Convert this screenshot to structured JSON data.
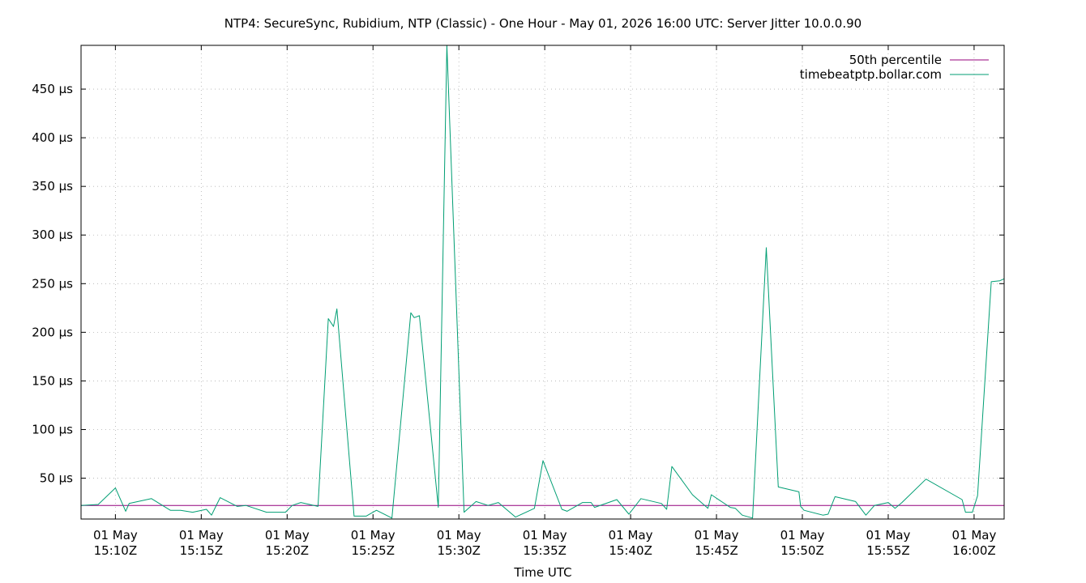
{
  "chart_data": {
    "type": "line",
    "title": "NTP4: SecureSync, Rubidium, NTP (Classic) - One Hour - May 01, 2026 16:00 UTC: Server Jitter 10.0.0.90",
    "xlabel": "Time UTC",
    "ylabel": "",
    "ylim": [
      8,
      495
    ],
    "x_range": [
      "2026-05-01T15:08:00Z",
      "2026-05-01T16:01:45Z"
    ],
    "grid": true,
    "legend_position": "top-right",
    "y_ticks": [
      {
        "value": 50,
        "label": "50 µs"
      },
      {
        "value": 100,
        "label": "100 µs"
      },
      {
        "value": 150,
        "label": "150 µs"
      },
      {
        "value": 200,
        "label": "200 µs"
      },
      {
        "value": 250,
        "label": "250 µs"
      },
      {
        "value": 300,
        "label": "300 µs"
      },
      {
        "value": 350,
        "label": "350 µs"
      },
      {
        "value": 400,
        "label": "400 µs"
      },
      {
        "value": 450,
        "label": "450 µs"
      }
    ],
    "x_ticks": [
      {
        "value": "2026-05-01T15:10:00Z",
        "line1": "01 May",
        "line2": "15:10Z"
      },
      {
        "value": "2026-05-01T15:15:00Z",
        "line1": "01 May",
        "line2": "15:15Z"
      },
      {
        "value": "2026-05-01T15:20:00Z",
        "line1": "01 May",
        "line2": "15:20Z"
      },
      {
        "value": "2026-05-01T15:25:00Z",
        "line1": "01 May",
        "line2": "15:25Z"
      },
      {
        "value": "2026-05-01T15:30:00Z",
        "line1": "01 May",
        "line2": "15:30Z"
      },
      {
        "value": "2026-05-01T15:35:00Z",
        "line1": "01 May",
        "line2": "15:35Z"
      },
      {
        "value": "2026-05-01T15:40:00Z",
        "line1": "01 May",
        "line2": "15:40Z"
      },
      {
        "value": "2026-05-01T15:45:00Z",
        "line1": "01 May",
        "line2": "15:45Z"
      },
      {
        "value": "2026-05-01T15:50:00Z",
        "line1": "01 May",
        "line2": "15:50Z"
      },
      {
        "value": "2026-05-01T15:55:00Z",
        "line1": "01 May",
        "line2": "15:55Z"
      },
      {
        "value": "2026-05-01T16:00:00Z",
        "line1": "01 May",
        "line2": "16:00Z"
      }
    ],
    "series": [
      {
        "name": "50th percentile",
        "color": "#94007e",
        "points": [
          {
            "x": "2026-05-01T15:08:00Z",
            "y": 22
          },
          {
            "x": "2026-05-01T16:01:45Z",
            "y": 22
          }
        ]
      },
      {
        "name": "timebeatptp.bollar.com",
        "color": "#009e73",
        "points": [
          {
            "x": "2026-05-01T15:08:00Z",
            "y": 22
          },
          {
            "x": "2026-05-01T15:09:00Z",
            "y": 23
          },
          {
            "x": "2026-05-01T15:10:00Z",
            "y": 40
          },
          {
            "x": "2026-05-01T15:10:36Z",
            "y": 16
          },
          {
            "x": "2026-05-01T15:10:48Z",
            "y": 24
          },
          {
            "x": "2026-05-01T15:12:06Z",
            "y": 29
          },
          {
            "x": "2026-05-01T15:13:12Z",
            "y": 17
          },
          {
            "x": "2026-05-01T15:13:48Z",
            "y": 17
          },
          {
            "x": "2026-05-01T15:14:30Z",
            "y": 15
          },
          {
            "x": "2026-05-01T15:15:18Z",
            "y": 18
          },
          {
            "x": "2026-05-01T15:15:36Z",
            "y": 12
          },
          {
            "x": "2026-05-01T15:16:06Z",
            "y": 30
          },
          {
            "x": "2026-05-01T15:17:06Z",
            "y": 21
          },
          {
            "x": "2026-05-01T15:17:36Z",
            "y": 22
          },
          {
            "x": "2026-05-01T15:18:48Z",
            "y": 15
          },
          {
            "x": "2026-05-01T15:19:54Z",
            "y": 15
          },
          {
            "x": "2026-05-01T15:20:18Z",
            "y": 22
          },
          {
            "x": "2026-05-01T15:20:48Z",
            "y": 25
          },
          {
            "x": "2026-05-01T15:21:48Z",
            "y": 21
          },
          {
            "x": "2026-05-01T15:22:24Z",
            "y": 214
          },
          {
            "x": "2026-05-01T15:22:42Z",
            "y": 206
          },
          {
            "x": "2026-05-01T15:22:54Z",
            "y": 224
          },
          {
            "x": "2026-05-01T15:23:54Z",
            "y": 11
          },
          {
            "x": "2026-05-01T15:24:36Z",
            "y": 11
          },
          {
            "x": "2026-05-01T15:25:12Z",
            "y": 17
          },
          {
            "x": "2026-05-01T15:26:06Z",
            "y": 9
          },
          {
            "x": "2026-05-01T15:27:12Z",
            "y": 220
          },
          {
            "x": "2026-05-01T15:27:24Z",
            "y": 215
          },
          {
            "x": "2026-05-01T15:27:42Z",
            "y": 217
          },
          {
            "x": "2026-05-01T15:28:48Z",
            "y": 20
          },
          {
            "x": "2026-05-01T15:29:18Z",
            "y": 495
          },
          {
            "x": "2026-05-01T15:30:18Z",
            "y": 15
          },
          {
            "x": "2026-05-01T15:31:00Z",
            "y": 26
          },
          {
            "x": "2026-05-01T15:31:42Z",
            "y": 22
          },
          {
            "x": "2026-05-01T15:32:18Z",
            "y": 25
          },
          {
            "x": "2026-05-01T15:33:18Z",
            "y": 10
          },
          {
            "x": "2026-05-01T15:34:24Z",
            "y": 19
          },
          {
            "x": "2026-05-01T15:34:54Z",
            "y": 68
          },
          {
            "x": "2026-05-01T15:36:00Z",
            "y": 18
          },
          {
            "x": "2026-05-01T15:36:18Z",
            "y": 16
          },
          {
            "x": "2026-05-01T15:37:12Z",
            "y": 25
          },
          {
            "x": "2026-05-01T15:37:42Z",
            "y": 25
          },
          {
            "x": "2026-05-01T15:37:54Z",
            "y": 20
          },
          {
            "x": "2026-05-01T15:39:12Z",
            "y": 28
          },
          {
            "x": "2026-05-01T15:39:54Z",
            "y": 13
          },
          {
            "x": "2026-05-01T15:40:36Z",
            "y": 29
          },
          {
            "x": "2026-05-01T15:41:48Z",
            "y": 24
          },
          {
            "x": "2026-05-01T15:42:06Z",
            "y": 18
          },
          {
            "x": "2026-05-01T15:42:24Z",
            "y": 62
          },
          {
            "x": "2026-05-01T15:43:36Z",
            "y": 33
          },
          {
            "x": "2026-05-01T15:44:30Z",
            "y": 19
          },
          {
            "x": "2026-05-01T15:44:42Z",
            "y": 33
          },
          {
            "x": "2026-05-01T15:45:48Z",
            "y": 20
          },
          {
            "x": "2026-05-01T15:46:06Z",
            "y": 19
          },
          {
            "x": "2026-05-01T15:46:30Z",
            "y": 12
          },
          {
            "x": "2026-05-01T15:47:06Z",
            "y": 9
          },
          {
            "x": "2026-05-01T15:47:54Z",
            "y": 287
          },
          {
            "x": "2026-05-01T15:48:36Z",
            "y": 41
          },
          {
            "x": "2026-05-01T15:49:48Z",
            "y": 36
          },
          {
            "x": "2026-05-01T15:49:54Z",
            "y": 21
          },
          {
            "x": "2026-05-01T15:50:06Z",
            "y": 17
          },
          {
            "x": "2026-05-01T15:51:12Z",
            "y": 12
          },
          {
            "x": "2026-05-01T15:51:30Z",
            "y": 13
          },
          {
            "x": "2026-05-01T15:51:54Z",
            "y": 31
          },
          {
            "x": "2026-05-01T15:53:06Z",
            "y": 26
          },
          {
            "x": "2026-05-01T15:53:42Z",
            "y": 12
          },
          {
            "x": "2026-05-01T15:54:12Z",
            "y": 22
          },
          {
            "x": "2026-05-01T15:55:00Z",
            "y": 25
          },
          {
            "x": "2026-05-01T15:55:24Z",
            "y": 19
          },
          {
            "x": "2026-05-01T15:55:48Z",
            "y": 25
          },
          {
            "x": "2026-05-01T15:57:12Z",
            "y": 49
          },
          {
            "x": "2026-05-01T15:59:18Z",
            "y": 28
          },
          {
            "x": "2026-05-01T15:59:30Z",
            "y": 15
          },
          {
            "x": "2026-05-01T15:59:54Z",
            "y": 15
          },
          {
            "x": "2026-05-01T16:00:12Z",
            "y": 32
          },
          {
            "x": "2026-05-01T16:01:00Z",
            "y": 252
          },
          {
            "x": "2026-05-01T16:01:30Z",
            "y": 253
          },
          {
            "x": "2026-05-01T16:01:45Z",
            "y": 255
          }
        ]
      }
    ]
  }
}
